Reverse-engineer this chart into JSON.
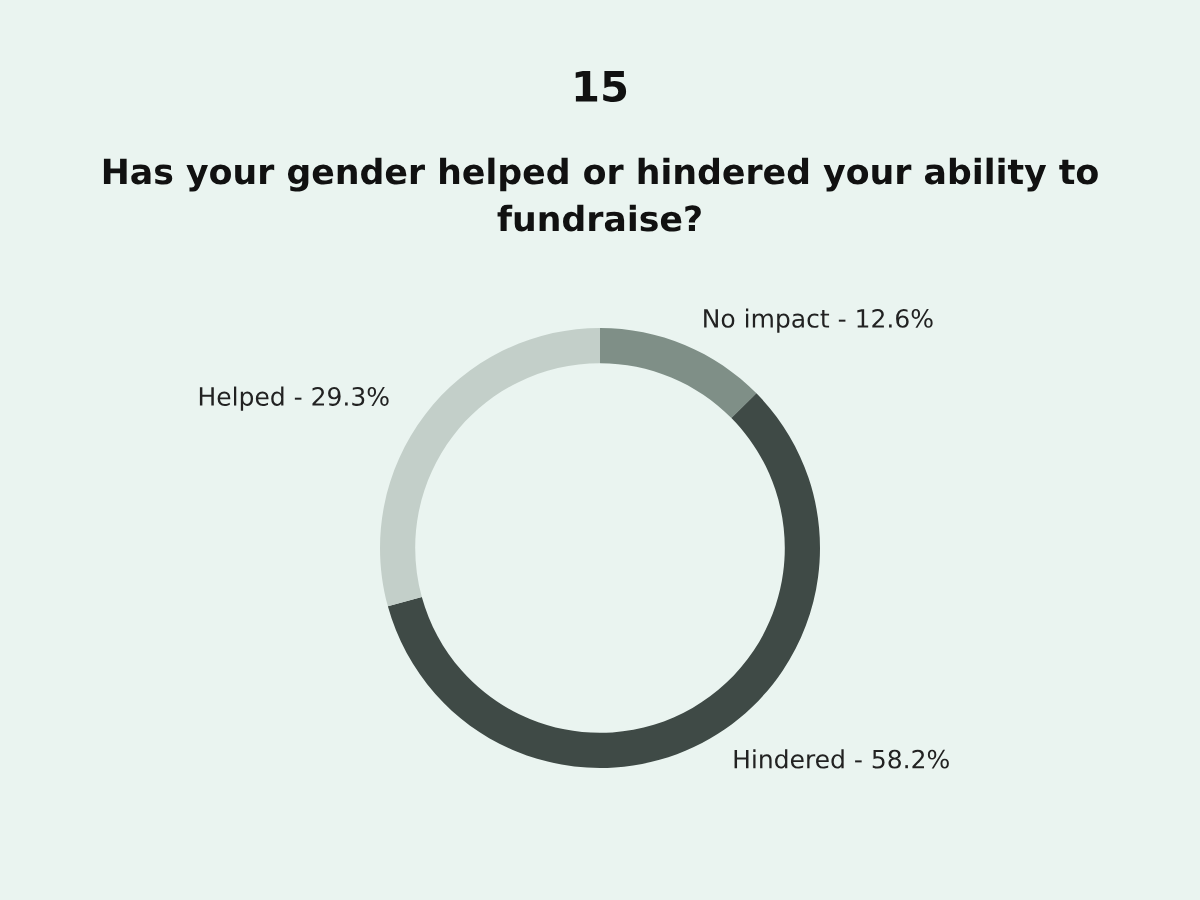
{
  "chart_data": {
    "type": "donut",
    "title": "15",
    "subtitle": "Has your gender helped or hindered your ability to fundraise?",
    "categories": [
      "No impact",
      "Hindered",
      "Helped"
    ],
    "values": [
      12.6,
      58.2,
      29.3
    ],
    "value_labels": [
      "12.6%",
      "58.2%",
      "29.3%"
    ],
    "colors": [
      "#7f8f87",
      "#3f4a46",
      "#c3cfc9"
    ],
    "legend": false
  }
}
